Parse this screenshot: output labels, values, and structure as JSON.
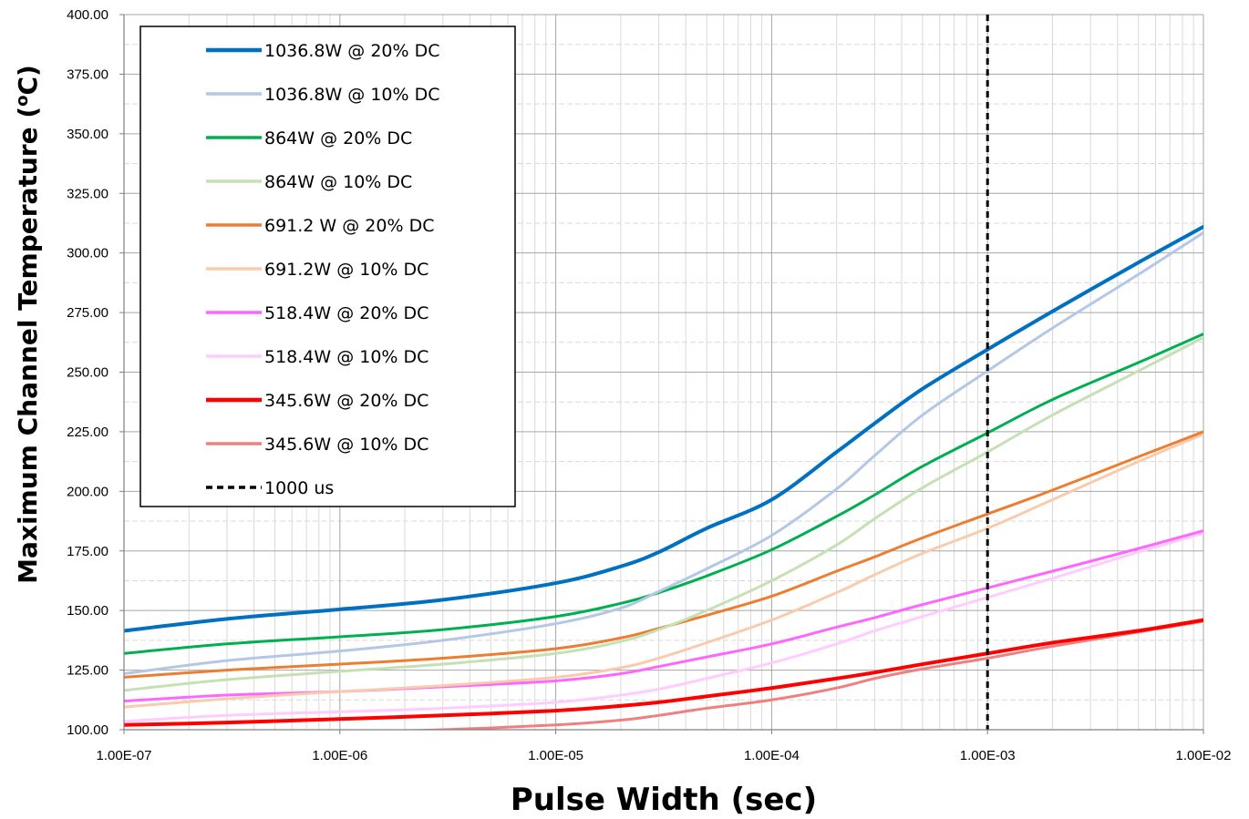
{
  "chart_data": {
    "type": "line",
    "xlabel": "Pulse Width (sec)",
    "ylabel": "Maximum Channel Temperature (oC)",
    "ylabel_parts": [
      "Maximum Channel Temperature (",
      "o",
      "C)"
    ],
    "xscale": "log",
    "xlim": [
      1e-07,
      0.01
    ],
    "ylim": [
      100,
      400
    ],
    "grid": true,
    "legend_position": "top-left",
    "x_tick_labels": [
      "1.00E-07",
      "1.00E-06",
      "1.00E-05",
      "1.00E-04",
      "1.00E-03",
      "1.00E-02"
    ],
    "y_tick_labels": [
      "100.00",
      "125.00",
      "150.00",
      "175.00",
      "200.00",
      "225.00",
      "250.00",
      "275.00",
      "300.00",
      "325.00",
      "350.00",
      "375.00",
      "400.00"
    ],
    "x": [
      1e-07,
      3e-07,
      1e-06,
      3e-06,
      1e-05,
      2e-05,
      3e-05,
      5e-05,
      0.0001,
      0.0002,
      0.0003,
      0.0005,
      0.001,
      0.002,
      0.005,
      0.01
    ],
    "series": [
      {
        "name": "1036.8W @ 20% DC",
        "color": "#0070C0",
        "width": 4,
        "values": [
          141.5,
          146.5,
          150.5,
          154.5,
          161.5,
          168.5,
          174.5,
          184.5,
          196.5,
          216.5,
          228.5,
          243.0,
          259.5,
          275.5,
          296.0,
          311.0
        ]
      },
      {
        "name": "1036.8W @ 10% DC",
        "color": "#B4C7E7",
        "width": 3,
        "values": [
          123.5,
          129.0,
          133.0,
          137.5,
          144.5,
          151.0,
          158.0,
          167.5,
          181.5,
          201.0,
          215.0,
          232.0,
          250.5,
          268.5,
          291.0,
          308.5
        ]
      },
      {
        "name": "864W @ 20% DC",
        "color": "#00B050",
        "width": 3,
        "values": [
          132.0,
          136.0,
          139.0,
          142.0,
          147.5,
          153.0,
          157.5,
          164.5,
          175.5,
          189.5,
          198.5,
          210.5,
          224.5,
          238.5,
          254.0,
          266.0
        ]
      },
      {
        "name": "864W @ 10% DC",
        "color": "#C5E0B4",
        "width": 3,
        "values": [
          116.5,
          121.0,
          124.5,
          127.5,
          132.0,
          137.0,
          142.0,
          150.0,
          162.5,
          177.5,
          188.5,
          201.5,
          216.5,
          232.0,
          250.5,
          264.5
        ]
      },
      {
        "name": "691.2 W @ 20% DC",
        "color": "#ED7D31",
        "width": 3,
        "values": [
          122.0,
          125.0,
          127.5,
          130.0,
          134.0,
          138.5,
          142.5,
          148.0,
          156.0,
          166.5,
          172.5,
          180.5,
          190.5,
          200.5,
          214.5,
          225.0
        ]
      },
      {
        "name": "691.2W @ 10% DC",
        "color": "#F8CBAD",
        "width": 3,
        "values": [
          109.5,
          113.0,
          116.0,
          118.5,
          122.0,
          126.0,
          130.0,
          136.5,
          146.0,
          157.5,
          165.0,
          174.0,
          184.5,
          196.5,
          212.5,
          224.0
        ]
      },
      {
        "name": "518.4W @ 20% DC",
        "color": "#FF66FF",
        "width": 3,
        "values": [
          112.0,
          114.5,
          116.0,
          118.0,
          120.5,
          123.5,
          126.5,
          130.5,
          136.0,
          143.0,
          147.0,
          152.5,
          159.5,
          166.5,
          176.0,
          183.5
        ]
      },
      {
        "name": "518.4W @ 10% DC",
        "color": "#FFCCFF",
        "width": 3,
        "values": [
          103.5,
          106.0,
          107.5,
          109.0,
          111.5,
          114.5,
          117.0,
          121.5,
          128.0,
          136.0,
          141.5,
          147.5,
          155.5,
          163.5,
          174.5,
          182.5
        ]
      },
      {
        "name": "345.6W @ 20% DC",
        "color": "#FF0000",
        "width": 4,
        "values": [
          102.0,
          103.0,
          104.5,
          106.0,
          108.0,
          110.0,
          111.5,
          114.0,
          117.5,
          121.5,
          124.0,
          127.5,
          132.0,
          136.5,
          141.5,
          146.0
        ]
      },
      {
        "name": "345.6W @ 10% DC",
        "color": "#F08080",
        "width": 3,
        "values": [
          97.0,
          98.0,
          99.0,
          100.0,
          102.0,
          104.0,
          106.0,
          109.0,
          112.5,
          117.5,
          121.5,
          125.5,
          130.0,
          135.0,
          141.0,
          145.5
        ]
      }
    ],
    "marker_line": {
      "name": "1000 us",
      "x": 0.001,
      "color": "#000000",
      "style": "dashed"
    }
  }
}
